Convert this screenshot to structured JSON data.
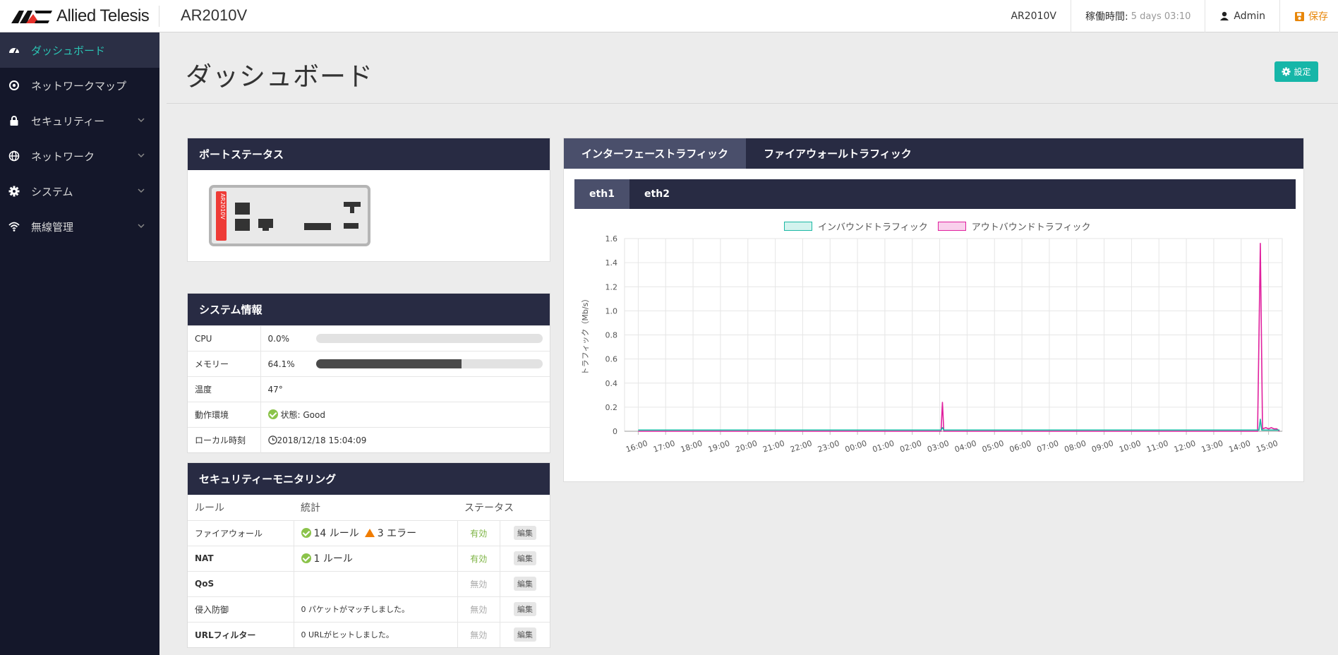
{
  "brand": {
    "logo_text": "Allied Telesis",
    "model": "AR2010V"
  },
  "topbar": {
    "device": "AR2010V",
    "uptime_label": "稼働時間:",
    "uptime_value": "5 days 03:10",
    "user": "Admin",
    "save": "保存"
  },
  "sidebar": {
    "items": [
      {
        "label": "ダッシュボード",
        "icon": "dashboard-icon"
      },
      {
        "label": "ネットワークマップ",
        "icon": "network-map-icon"
      },
      {
        "label": "セキュリティー",
        "icon": "lock-icon"
      },
      {
        "label": "ネットワーク",
        "icon": "globe-icon"
      },
      {
        "label": "システム",
        "icon": "gear-icon"
      },
      {
        "label": "無線管理",
        "icon": "wifi-icon"
      }
    ]
  },
  "page": {
    "title": "ダッシュボード",
    "settings": "設定"
  },
  "port_status": {
    "title": "ポートステータス",
    "device_label": "AR2010V"
  },
  "system_info": {
    "title": "システム情報",
    "cpu_label": "CPU",
    "cpu_value": "0.0%",
    "cpu_fraction": 0.0,
    "mem_label": "メモリー",
    "mem_value": "64.1%",
    "mem_fraction": 0.641,
    "temp_label": "温度",
    "temp_value": "47°",
    "env_label": "動作環境",
    "env_value": "状態: Good",
    "time_label": "ローカル時刻",
    "time_value": "2018/12/18 15:04:09"
  },
  "security": {
    "title": "セキュリティーモニタリング",
    "headers": {
      "rule": "ルール",
      "stats": "統計",
      "status": "ステータス"
    },
    "edit": "編集",
    "rows": [
      {
        "rule": "ファイアウォール",
        "stats": "14 ルール",
        "errors": "3 エラー",
        "status": "有効"
      },
      {
        "rule": "NAT",
        "stats": "1 ルール",
        "status": "有効"
      },
      {
        "rule": "QoS",
        "stats": "",
        "status": "無効"
      },
      {
        "rule": "侵入防御",
        "stats": "0 パケットがマッチしました。",
        "status": "無効"
      },
      {
        "rule": "URLフィルター",
        "stats": "0 URLがヒットしました。",
        "status": "無効"
      }
    ]
  },
  "traffic": {
    "tabs": [
      "インターフェーストラフィック",
      "ファイアウォールトラフィック"
    ],
    "subtabs": [
      "eth1",
      "eth2"
    ]
  },
  "colors": {
    "accent": "#2bc4b4",
    "inbound": "#1bb8a4",
    "outbound": "#e0209e",
    "panel_head": "#282b43"
  },
  "chart_data": {
    "type": "line",
    "ylabel": "トラフィック（Mb/s）",
    "xlabel": "",
    "ylim": [
      0,
      1.6
    ],
    "yticks": [
      0,
      0.2,
      0.4,
      0.6,
      0.8,
      1.0,
      1.2,
      1.4,
      1.6
    ],
    "ytick_labels": [
      "0",
      "0.2",
      "0.4",
      "0.6",
      "0.8",
      "1.0",
      "1.2",
      "1.4",
      "1.6"
    ],
    "categories": [
      "16:00",
      "17:00",
      "18:00",
      "19:00",
      "20:00",
      "21:00",
      "22:00",
      "23:00",
      "00:00",
      "01:00",
      "02:00",
      "03:00",
      "04:00",
      "05:00",
      "06:00",
      "07:00",
      "08:00",
      "09:00",
      "10:00",
      "11:00",
      "12:00",
      "13:00",
      "14:00",
      "15:00"
    ],
    "grid": true,
    "legend": "top-center",
    "series": [
      {
        "name": "インバウンドトラフィック",
        "color": "#1bb8a4",
        "points": [
          [
            0,
            0.01
          ],
          [
            11.05,
            0.01
          ],
          [
            11.1,
            0.03
          ],
          [
            11.15,
            0.01
          ],
          [
            22.65,
            0.01
          ],
          [
            22.7,
            0.1
          ],
          [
            22.75,
            0.01
          ],
          [
            23.0,
            0.01
          ],
          [
            23.4,
            0.01
          ]
        ]
      },
      {
        "name": "アウトバウンドトラフィック",
        "color": "#e0209e",
        "points": [
          [
            0,
            0
          ],
          [
            11.05,
            0
          ],
          [
            11.1,
            0.24
          ],
          [
            11.15,
            0
          ],
          [
            22.6,
            0
          ],
          [
            22.7,
            1.56
          ],
          [
            22.78,
            0.02
          ],
          [
            22.9,
            0.03
          ],
          [
            23.0,
            0.02
          ],
          [
            23.1,
            0.03
          ],
          [
            23.2,
            0.02
          ],
          [
            23.3,
            0.02
          ],
          [
            23.4,
            0
          ]
        ]
      }
    ]
  }
}
